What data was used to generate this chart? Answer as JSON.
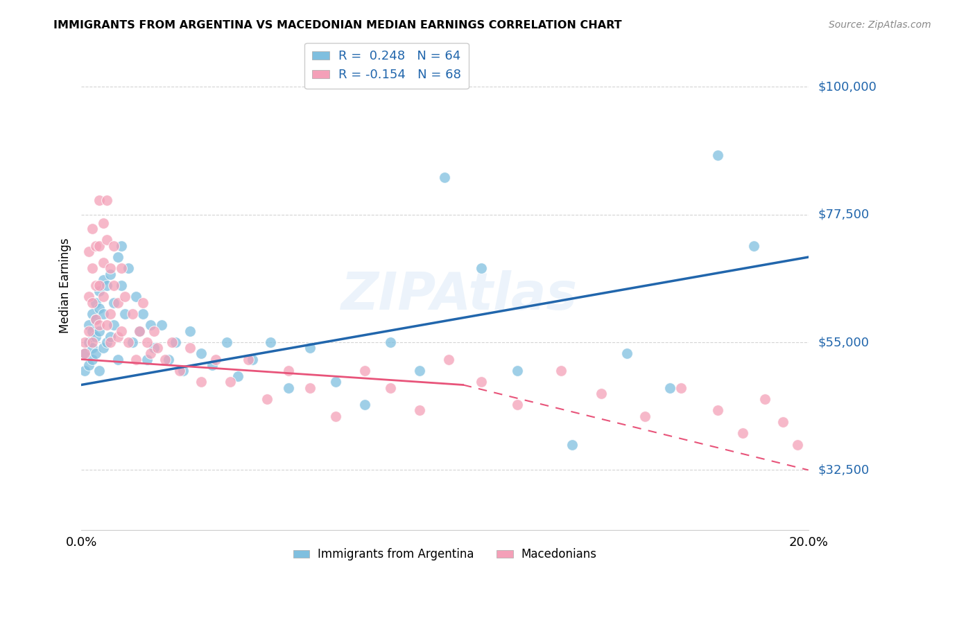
{
  "title": "IMMIGRANTS FROM ARGENTINA VS MACEDONIAN MEDIAN EARNINGS CORRELATION CHART",
  "source": "Source: ZipAtlas.com",
  "ylabel": "Median Earnings",
  "xlim": [
    0,
    0.2
  ],
  "ylim": [
    22000,
    108000
  ],
  "yticks": [
    32500,
    55000,
    77500,
    100000
  ],
  "xticks": [
    0.0,
    0.04,
    0.08,
    0.12,
    0.16,
    0.2
  ],
  "series1_label": "Immigrants from Argentina",
  "series2_label": "Macedonians",
  "R1": 0.248,
  "N1": 64,
  "R2": -0.154,
  "N2": 68,
  "color1": "#7fbfdf",
  "color2": "#f4a0b8",
  "trend1_color": "#2166ac",
  "trend2_color": "#e8547a",
  "watermark": "ZIPAtlas",
  "argentina_x": [
    0.001,
    0.001,
    0.002,
    0.002,
    0.002,
    0.003,
    0.003,
    0.003,
    0.003,
    0.004,
    0.004,
    0.004,
    0.004,
    0.005,
    0.005,
    0.005,
    0.005,
    0.006,
    0.006,
    0.006,
    0.007,
    0.007,
    0.008,
    0.008,
    0.009,
    0.009,
    0.01,
    0.01,
    0.011,
    0.011,
    0.012,
    0.013,
    0.014,
    0.015,
    0.016,
    0.017,
    0.018,
    0.019,
    0.02,
    0.022,
    0.024,
    0.026,
    0.028,
    0.03,
    0.033,
    0.036,
    0.04,
    0.043,
    0.047,
    0.052,
    0.057,
    0.063,
    0.07,
    0.078,
    0.085,
    0.093,
    0.1,
    0.11,
    0.12,
    0.135,
    0.15,
    0.162,
    0.175,
    0.185
  ],
  "argentina_y": [
    50000,
    53000,
    51000,
    55000,
    58000,
    54000,
    57000,
    60000,
    52000,
    56000,
    62000,
    59000,
    53000,
    64000,
    61000,
    57000,
    50000,
    66000,
    60000,
    54000,
    65000,
    55000,
    67000,
    56000,
    62000,
    58000,
    70000,
    52000,
    65000,
    72000,
    60000,
    68000,
    55000,
    63000,
    57000,
    60000,
    52000,
    58000,
    54000,
    58000,
    52000,
    55000,
    50000,
    57000,
    53000,
    51000,
    55000,
    49000,
    52000,
    55000,
    47000,
    54000,
    48000,
    44000,
    55000,
    50000,
    84000,
    68000,
    50000,
    37000,
    53000,
    47000,
    88000,
    72000
  ],
  "macedonian_x": [
    0.001,
    0.001,
    0.002,
    0.002,
    0.002,
    0.003,
    0.003,
    0.003,
    0.003,
    0.004,
    0.004,
    0.004,
    0.005,
    0.005,
    0.005,
    0.005,
    0.006,
    0.006,
    0.006,
    0.007,
    0.007,
    0.007,
    0.008,
    0.008,
    0.008,
    0.009,
    0.009,
    0.01,
    0.01,
    0.011,
    0.011,
    0.012,
    0.013,
    0.014,
    0.015,
    0.016,
    0.017,
    0.018,
    0.019,
    0.02,
    0.021,
    0.023,
    0.025,
    0.027,
    0.03,
    0.033,
    0.037,
    0.041,
    0.046,
    0.051,
    0.057,
    0.063,
    0.07,
    0.078,
    0.085,
    0.093,
    0.101,
    0.11,
    0.12,
    0.132,
    0.143,
    0.155,
    0.165,
    0.175,
    0.182,
    0.188,
    0.193,
    0.197
  ],
  "macedonian_y": [
    55000,
    53000,
    71000,
    63000,
    57000,
    75000,
    68000,
    62000,
    55000,
    72000,
    65000,
    59000,
    80000,
    72000,
    65000,
    58000,
    76000,
    69000,
    63000,
    80000,
    73000,
    58000,
    68000,
    60000,
    55000,
    72000,
    65000,
    62000,
    56000,
    68000,
    57000,
    63000,
    55000,
    60000,
    52000,
    57000,
    62000,
    55000,
    53000,
    57000,
    54000,
    52000,
    55000,
    50000,
    54000,
    48000,
    52000,
    48000,
    52000,
    45000,
    50000,
    47000,
    42000,
    50000,
    47000,
    43000,
    52000,
    48000,
    44000,
    50000,
    46000,
    42000,
    47000,
    43000,
    39000,
    45000,
    41000,
    37000
  ],
  "trend1_x0": 0.0,
  "trend1_y0": 47500,
  "trend1_x1": 0.2,
  "trend1_y1": 70000,
  "trend2_x0": 0.0,
  "trend2_y0": 52000,
  "trend2_solid_x1": 0.105,
  "trend2_solid_y1": 47500,
  "trend2_dash_x1": 0.2,
  "trend2_dash_y1": 32500
}
